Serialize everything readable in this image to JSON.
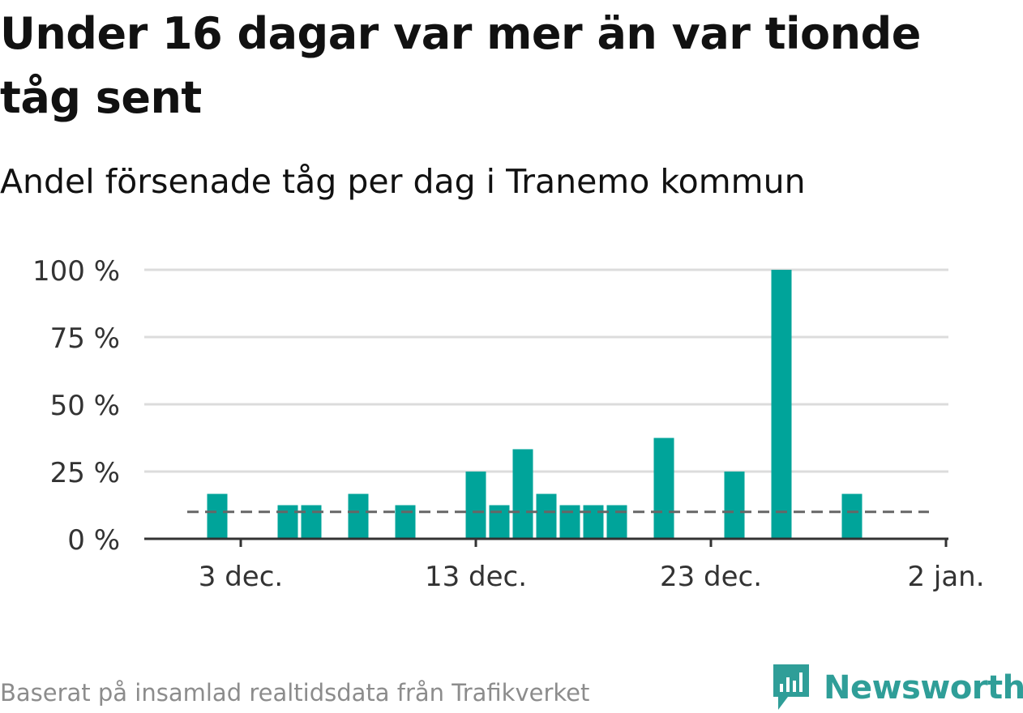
{
  "title": "Under 16 dagar var mer än var tionde tåg sent",
  "subtitle": "Andel försenade tåg per dag i Tranemo kommun",
  "footer": "Baserat på insamlad realtidsdata från Trafikverket",
  "brand": "Newsworthy",
  "colors": {
    "bar": "#00a49a",
    "grid": "#dcdcdc",
    "axis": "#333333",
    "reference": "#666666",
    "brand": "#2f9e98"
  },
  "chart_data": {
    "type": "bar",
    "x_unit": "day",
    "x_axis": "days from 1 Dec",
    "xlim": [
      0,
      34
    ],
    "ylim": [
      0,
      100
    ],
    "y_ticks": [
      {
        "value": 0,
        "label": "0 %"
      },
      {
        "value": 25,
        "label": "25 %"
      },
      {
        "value": 50,
        "label": "50 %"
      },
      {
        "value": 75,
        "label": "75 %"
      },
      {
        "value": 100,
        "label": "100 %"
      }
    ],
    "x_ticks": [
      {
        "day": 3,
        "label": "3 dec."
      },
      {
        "day": 13,
        "label": "13 dec."
      },
      {
        "day": 23,
        "label": "23 dec."
      },
      {
        "day": 33,
        "label": "2 jan."
      }
    ],
    "reference_line": {
      "value": 10,
      "style": "dashed",
      "from_day": 1,
      "to_day": 32
    },
    "series": [
      {
        "name": "Andel försenade tåg",
        "points": [
          {
            "day": 2,
            "value": 16.7
          },
          {
            "day": 5,
            "value": 12.5
          },
          {
            "day": 6,
            "value": 12.5
          },
          {
            "day": 8,
            "value": 16.7
          },
          {
            "day": 10,
            "value": 12.5
          },
          {
            "day": 13,
            "value": 25
          },
          {
            "day": 14,
            "value": 12.5
          },
          {
            "day": 15,
            "value": 33.3
          },
          {
            "day": 16,
            "value": 16.7
          },
          {
            "day": 17,
            "value": 12.5
          },
          {
            "day": 18,
            "value": 12.5
          },
          {
            "day": 19,
            "value": 12.5
          },
          {
            "day": 21,
            "value": 37.5
          },
          {
            "day": 24,
            "value": 25
          },
          {
            "day": 26,
            "value": 100
          },
          {
            "day": 29,
            "value": 16.7
          }
        ]
      }
    ]
  }
}
